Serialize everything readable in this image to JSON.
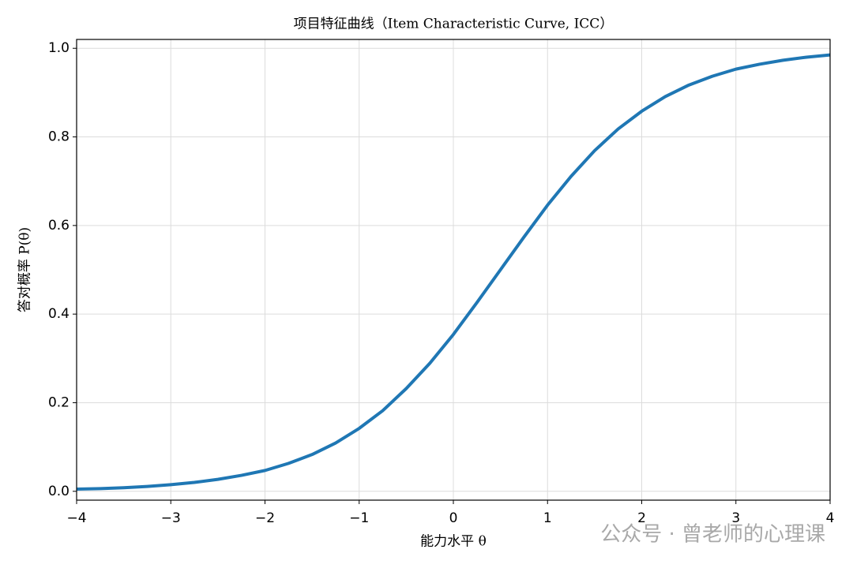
{
  "chart_data": {
    "type": "line",
    "title": "项目特征曲线（Item Characteristic Curve, ICC）",
    "x_label": "能力水平 θ",
    "y_label": "答对概率 P(θ)",
    "watermark": "公众号 · 曾老师的心理课",
    "x": [
      -4,
      -3.75,
      -3.5,
      -3.25,
      -3,
      -2.75,
      -2.5,
      -2.25,
      -2,
      -1.75,
      -1.5,
      -1.25,
      -1,
      -0.75,
      -0.5,
      -0.25,
      0,
      0.25,
      0.5,
      0.75,
      1,
      1.25,
      1.5,
      1.75,
      2,
      2.25,
      2.5,
      2.75,
      3,
      3.25,
      3.5,
      3.75,
      4
    ],
    "series": [
      {
        "color": "#1f77b4",
        "values": [
          0.005,
          0.006,
          0.008,
          0.011,
          0.015,
          0.02,
          0.027,
          0.036,
          0.047,
          0.063,
          0.083,
          0.109,
          0.142,
          0.182,
          0.232,
          0.289,
          0.354,
          0.426,
          0.5,
          0.574,
          0.646,
          0.711,
          0.769,
          0.818,
          0.858,
          0.891,
          0.917,
          0.937,
          0.953,
          0.964,
          0.973,
          0.98,
          0.985
        ]
      }
    ],
    "xlim": [
      -4,
      4
    ],
    "ylim": [
      -0.02,
      1.02
    ],
    "xticks": [
      {
        "value": -4,
        "label": "−4"
      },
      {
        "value": -3,
        "label": "−3"
      },
      {
        "value": -2,
        "label": "−2"
      },
      {
        "value": -1,
        "label": "−1"
      },
      0,
      1,
      2,
      3,
      4
    ],
    "yticks": [
      {
        "value": 0,
        "label": "0.0"
      },
      0.2,
      0.4,
      0.6,
      0.8,
      {
        "value": 1,
        "label": "1.0"
      }
    ],
    "grid": true
  }
}
